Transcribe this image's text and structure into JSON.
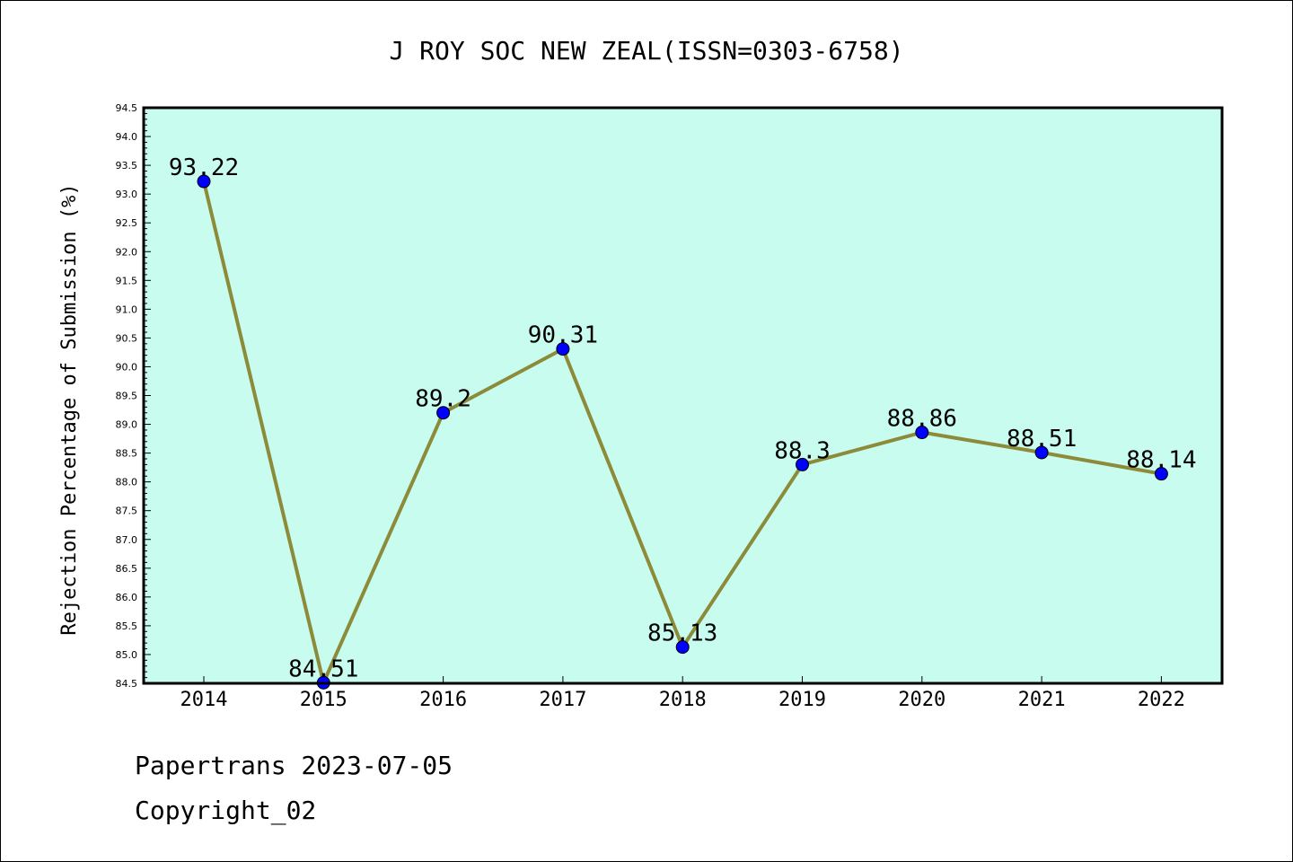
{
  "chart_data": {
    "type": "line",
    "title": "J ROY SOC NEW ZEAL(ISSN=0303-6758)",
    "xlabel": "",
    "ylabel": "Rejection Percentage of Submission (%)",
    "categories": [
      "2014",
      "2015",
      "2016",
      "2017",
      "2018",
      "2019",
      "2020",
      "2021",
      "2022"
    ],
    "series": [
      {
        "values": [
          93.22,
          84.51,
          89.2,
          90.31,
          85.13,
          88.3,
          88.86,
          88.51,
          88.14
        ],
        "labels": [
          "93.22",
          "84.51",
          "89.2",
          "90.31",
          "85.13",
          "88.3",
          "88.86",
          "88.51",
          "88.14"
        ],
        "line_color": "#8b8b3a",
        "marker_color": "#0000ff"
      }
    ],
    "ylim": [
      84.5,
      94.5
    ],
    "yticks": [
      "84.5",
      "85.0",
      "85.5",
      "86.0",
      "86.5",
      "87.0",
      "87.5",
      "88.0",
      "88.5",
      "89.0",
      "89.5",
      "90.0",
      "90.5",
      "91.0",
      "91.5",
      "92.0",
      "92.5",
      "93.0",
      "93.5",
      "94.0",
      "94.5"
    ],
    "plot_background": "#c8fcee",
    "grid": false,
    "legend": "none"
  },
  "footer": {
    "line1": "Papertrans 2023-07-05",
    "line2": "Copyright_02"
  }
}
